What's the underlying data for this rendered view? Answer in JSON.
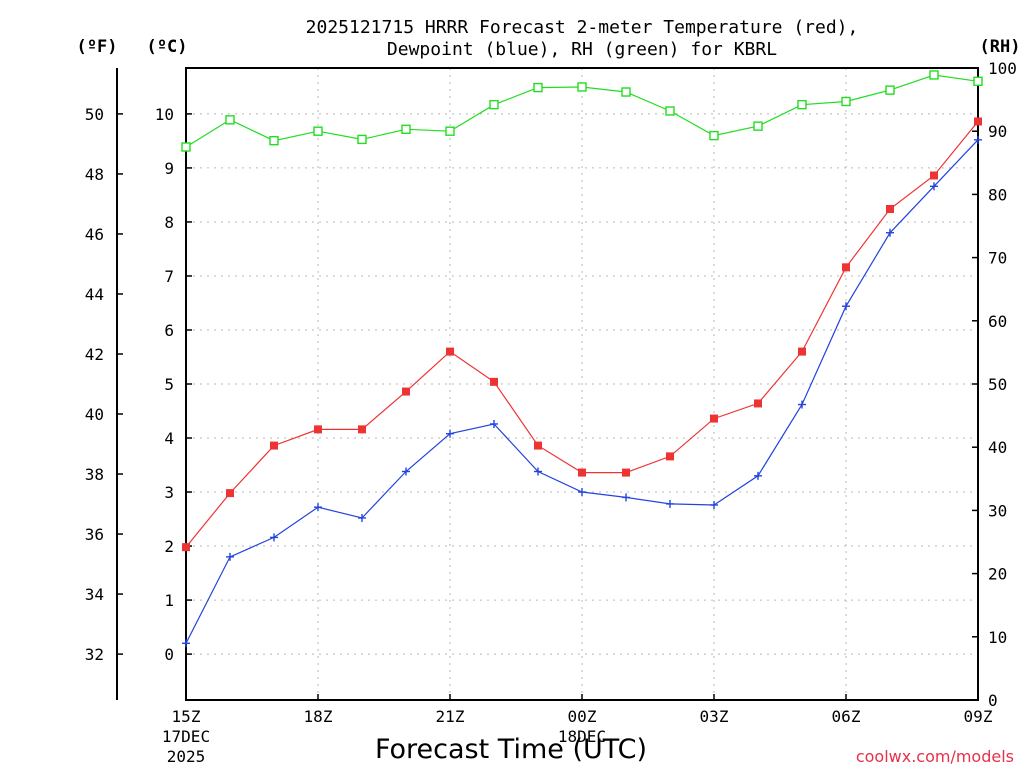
{
  "chart_data": {
    "type": "line",
    "title_line1": "2025121715 HRRR Forecast 2-meter Temperature (red),",
    "title_line2": "Dewpoint (blue), RH (green) for KBRL",
    "xlabel": "Forecast Time (UTC)",
    "credit": "coolwx.com/models",
    "units": {
      "fahrenheit": "(ºF)",
      "celsius": "(ºC)",
      "rh": "(RH)"
    },
    "x_hours": [
      0,
      1,
      2,
      3,
      4,
      5,
      6,
      7,
      8,
      9,
      10,
      11,
      12,
      13,
      14,
      15,
      16,
      17,
      18
    ],
    "x_ticks": [
      {
        "hour": 0,
        "label": "15Z",
        "date": "17DEC",
        "year": "2025"
      },
      {
        "hour": 3,
        "label": "18Z",
        "date": "",
        "year": ""
      },
      {
        "hour": 6,
        "label": "21Z",
        "date": "",
        "year": ""
      },
      {
        "hour": 9,
        "label": "00Z",
        "date": "18DEC",
        "year": ""
      },
      {
        "hour": 12,
        "label": "03Z",
        "date": "",
        "year": ""
      },
      {
        "hour": 15,
        "label": "06Z",
        "date": "",
        "year": ""
      },
      {
        "hour": 18,
        "label": "09Z",
        "date": "",
        "year": ""
      }
    ],
    "ylim_celsius": [
      -0.85,
      10.85
    ],
    "ylim_rh": [
      0,
      100
    ],
    "celsius_ticks": [
      0,
      1,
      2,
      3,
      4,
      5,
      6,
      7,
      8,
      9,
      10
    ],
    "fahrenheit_ticks": [
      32,
      34,
      36,
      38,
      40,
      42,
      44,
      46,
      48,
      50
    ],
    "rh_ticks": [
      0,
      10,
      20,
      30,
      40,
      50,
      60,
      70,
      80,
      90,
      100
    ],
    "grid": true,
    "series": [
      {
        "name": "Temperature",
        "axis": "celsius",
        "color": "#ee3333",
        "marker": "filled-square",
        "values": [
          1.98,
          2.98,
          3.86,
          4.16,
          4.16,
          4.86,
          5.6,
          5.04,
          3.86,
          3.36,
          3.36,
          3.66,
          4.36,
          4.64,
          5.6,
          7.16,
          8.24,
          8.86,
          9.86
        ]
      },
      {
        "name": "Dewpoint",
        "axis": "celsius",
        "color": "#2244dd",
        "marker": "plus",
        "values": [
          0.2,
          1.8,
          2.16,
          2.72,
          2.52,
          3.38,
          4.08,
          4.26,
          3.38,
          3.0,
          2.9,
          2.78,
          2.76,
          3.3,
          4.62,
          6.44,
          7.8,
          8.66,
          9.52
        ]
      },
      {
        "name": "RH",
        "axis": "rh",
        "color": "#22dd22",
        "marker": "open-square",
        "values": [
          87.5,
          91.8,
          88.5,
          90.0,
          88.7,
          90.3,
          90.0,
          94.2,
          96.9,
          97.0,
          96.2,
          93.2,
          89.3,
          90.8,
          94.2,
          94.7,
          96.5,
          98.9,
          97.9
        ]
      }
    ]
  }
}
